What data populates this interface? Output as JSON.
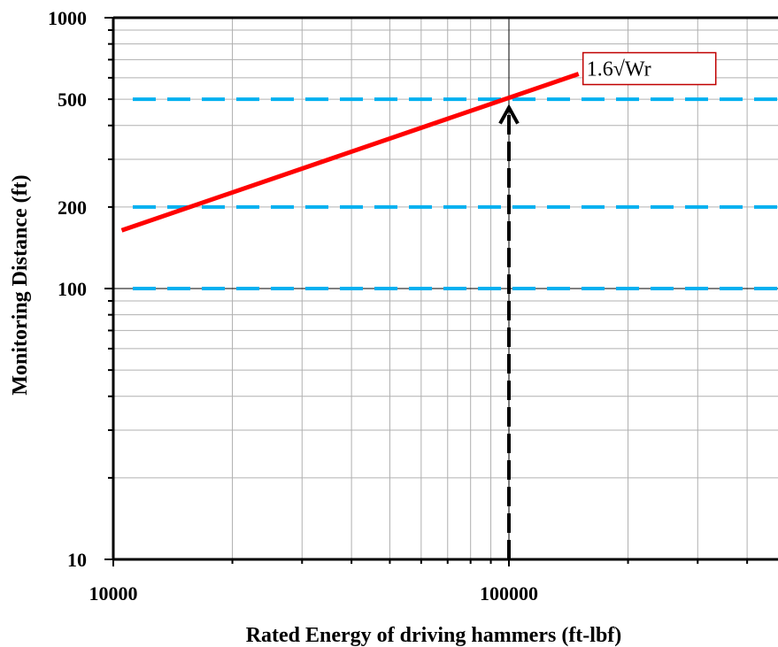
{
  "chart_data": {
    "type": "line",
    "title": "",
    "xlabel": "Rated Energy of driving hammers (ft-lbf)",
    "ylabel": "Monitoring Distance (ft)",
    "x_scale": "log",
    "y_scale": "log",
    "xlim": [
      10000,
      500000
    ],
    "ylim": [
      10,
      1000
    ],
    "grid": true,
    "x_tick_labels": [
      {
        "value": 10000,
        "label": "10000"
      },
      {
        "value": 100000,
        "label": "100000"
      }
    ],
    "y_tick_labels": [
      {
        "value": 10,
        "label": "10"
      },
      {
        "value": 100,
        "label": "100"
      },
      {
        "value": 200,
        "label": "200"
      },
      {
        "value": 500,
        "label": "500"
      },
      {
        "value": 1000,
        "label": "1000"
      }
    ],
    "series": [
      {
        "type": "line",
        "color": "#ff0000",
        "x": [
          10500,
          150000
        ],
        "y": [
          164,
          620
        ]
      }
    ],
    "reference_lines": {
      "horizontal": [
        {
          "y": 100,
          "color": "#00b0f0",
          "style": "dashed"
        },
        {
          "y": 200,
          "color": "#00b0f0",
          "style": "dashed"
        },
        {
          "y": 500,
          "color": "#00b0f0",
          "style": "dashed"
        }
      ],
      "vertical": [
        {
          "x": 100000,
          "y_from": 10,
          "y_to": 480,
          "color": "#000000",
          "style": "dashed",
          "arrow": "up"
        }
      ],
      "solid_axes_lines": [
        {
          "orientation": "vertical",
          "value": 100000
        },
        {
          "orientation": "horizontal",
          "value": 100
        }
      ]
    },
    "annotations": [
      {
        "text": "1.6√Wr",
        "x": 150000,
        "y": 620,
        "box_color": "#c00000"
      }
    ]
  }
}
